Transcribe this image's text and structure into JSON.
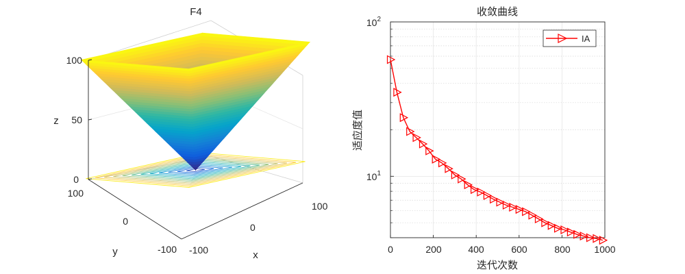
{
  "figure": {
    "left_title": "F4",
    "right_title": "收敛曲线"
  },
  "chart_data": [
    {
      "type": "surface3d",
      "title": "F4",
      "function": "z = max(|x|, |y|)",
      "xlabel": "x",
      "ylabel": "y",
      "zlabel": "z",
      "xlim": [
        -100,
        100
      ],
      "ylim": [
        -100,
        100
      ],
      "zlim": [
        0,
        100
      ],
      "x_ticks": [
        "-100",
        "0",
        "100"
      ],
      "y_ticks": [
        "-100",
        "0",
        "100"
      ],
      "z_ticks": [
        "0",
        "50",
        "100"
      ],
      "contour_levels": [
        8,
        16,
        24,
        32,
        40,
        48,
        56,
        64,
        72,
        80,
        88,
        96
      ],
      "colormap": "parula",
      "colormap_colors": [
        "#352a87",
        "#0f5cdd",
        "#1481d6",
        "#06a4ca",
        "#2eb7a4",
        "#87bf77",
        "#d1bb59",
        "#fec832",
        "#f9fb0e"
      ]
    },
    {
      "type": "line",
      "title": "收敛曲线",
      "xlabel": "迭代次数",
      "ylabel": "适应度值",
      "yscale": "log",
      "xlim": [
        0,
        1000
      ],
      "ylim": [
        4,
        100
      ],
      "x_ticks": [
        "0",
        "200",
        "400",
        "600",
        "800",
        "1000"
      ],
      "y_ticks": [
        "10^1",
        "10^2"
      ],
      "grid": true,
      "legend_position": "top-right",
      "series": [
        {
          "name": "IA",
          "color": "#ff0000",
          "marker": "triangle-right",
          "x": [
            0,
            30,
            60,
            90,
            120,
            150,
            180,
            210,
            240,
            270,
            300,
            330,
            360,
            390,
            420,
            450,
            480,
            510,
            540,
            570,
            600,
            630,
            660,
            690,
            720,
            750,
            780,
            810,
            840,
            870,
            900,
            930,
            960,
            990
          ],
          "y": [
            57,
            35,
            24,
            19.5,
            17.8,
            16.2,
            14.6,
            12.9,
            12.2,
            11.2,
            10.2,
            9.6,
            8.8,
            8.2,
            7.9,
            7.5,
            7.1,
            6.8,
            6.5,
            6.3,
            6.1,
            5.9,
            5.6,
            5.3,
            5.0,
            4.8,
            4.6,
            4.5,
            4.35,
            4.2,
            4.1,
            4.0,
            3.95,
            3.85
          ]
        }
      ]
    }
  ]
}
